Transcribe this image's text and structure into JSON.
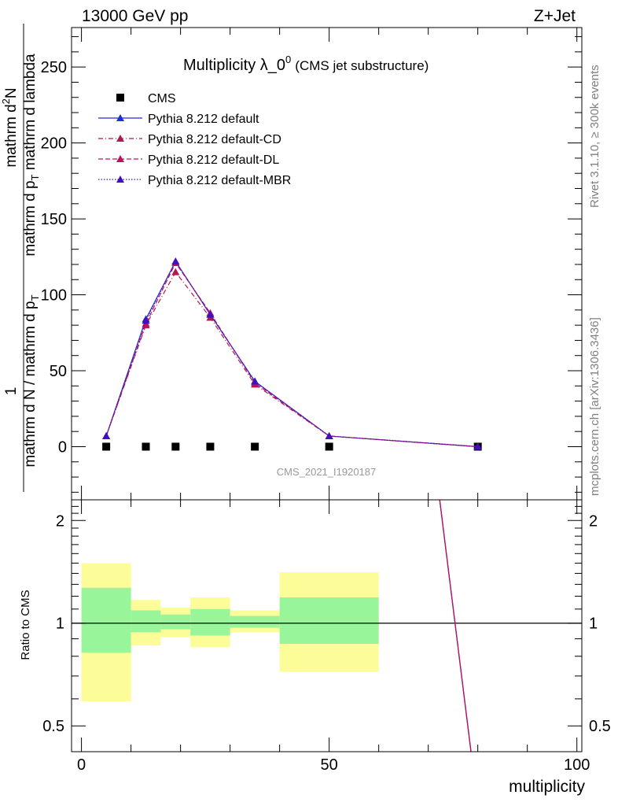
{
  "header": {
    "left": "13000 GeV pp",
    "right": "Z+Jet"
  },
  "side_text": {
    "rivet": "Rivet 3.1.10, ≥ 300k events",
    "mcplots": "mcplots.cern.ch [arXiv:1306.3436]"
  },
  "chart_data": [
    {
      "type": "line",
      "title": {
        "main": "Multiplicity λ_0",
        "sup": "0",
        "suffix": "(CMS jet substructure)"
      },
      "ylabel": {
        "numerator_1": "mathrm d",
        "numerator_sup": "2",
        "numerator_2": "N",
        "denominator_1": "mathrm d p",
        "denominator_sub": "T",
        "denominator_2": " mathrm d lambda",
        "prefactor_num": "1",
        "prefactor_den": "mathrm d N / mathrm d p",
        "prefactor_den_sub": "T"
      },
      "watermark": "CMS_2021_I1920187",
      "xlim": [
        -2,
        101
      ],
      "ylim": [
        -35,
        276
      ],
      "yticks": [
        0,
        50,
        100,
        150,
        200,
        250
      ],
      "legend_position": "top-left",
      "series": [
        {
          "name": "CMS",
          "color": "#000000",
          "marker": "square",
          "x": [
            5,
            13,
            19,
            26,
            35,
            50,
            80
          ],
          "y": [
            0,
            0,
            0,
            0,
            0,
            0,
            0
          ]
        },
        {
          "name": "Pythia 8.212 default",
          "color": "#1f2fd0",
          "marker": "triangle",
          "dash": "solid",
          "x": [
            5,
            13,
            19,
            26,
            35,
            50,
            80
          ],
          "y": [
            7,
            84,
            122,
            87,
            43,
            7,
            0
          ]
        },
        {
          "name": "Pythia 8.212 default-CD",
          "color": "#b01850",
          "marker": "triangle",
          "dash": "dash-dot",
          "x": [
            5,
            13,
            19,
            26,
            35,
            50,
            80
          ],
          "y": [
            7,
            80,
            115,
            85,
            41,
            7,
            0
          ]
        },
        {
          "name": "Pythia 8.212 default-DL",
          "color": "#c01060",
          "marker": "triangle",
          "dash": "dash",
          "x": [
            5,
            13,
            19,
            26,
            35,
            50,
            80
          ],
          "y": [
            7,
            81,
            121,
            88,
            42,
            7,
            0
          ]
        },
        {
          "name": "Pythia 8.212 default-MBR",
          "color": "#4010c0",
          "marker": "triangle",
          "dash": "dot",
          "x": [
            5,
            13,
            19,
            26,
            35,
            50,
            80
          ],
          "y": [
            7,
            83,
            122,
            87,
            43,
            7,
            0
          ]
        }
      ]
    },
    {
      "type": "line",
      "ylabel": "Ratio to CMS",
      "xlabel": "multiplicity",
      "xlim": [
        -2,
        101
      ],
      "ylim": [
        0.42,
        2.3
      ],
      "log_y": true,
      "xticks": [
        0,
        50,
        100
      ],
      "yticks": [
        0.5,
        1,
        2
      ],
      "reference_line": 1,
      "bands": [
        {
          "xlo": 0,
          "xhi": 10,
          "inner": [
            0.82,
            1.27
          ],
          "outer": [
            0.59,
            1.5
          ]
        },
        {
          "xlo": 10,
          "xhi": 16,
          "inner": [
            0.94,
            1.09
          ],
          "outer": [
            0.86,
            1.17
          ]
        },
        {
          "xlo": 16,
          "xhi": 22,
          "inner": [
            0.96,
            1.06
          ],
          "outer": [
            0.91,
            1.11
          ]
        },
        {
          "xlo": 22,
          "xhi": 30,
          "inner": [
            0.92,
            1.1
          ],
          "outer": [
            0.85,
            1.19
          ]
        },
        {
          "xlo": 30,
          "xhi": 40,
          "inner": [
            0.97,
            1.05
          ],
          "outer": [
            0.94,
            1.09
          ]
        },
        {
          "xlo": 40,
          "xhi": 60,
          "inner": [
            0.87,
            1.19
          ],
          "outer": [
            0.72,
            1.41
          ]
        }
      ],
      "band_colors": {
        "inner": "#99f599",
        "outer": "#fcfc99"
      },
      "series": [
        {
          "name": "Pythia 8.212 default",
          "color": "#1f2fd0",
          "x": [
            72,
            79
          ],
          "y": [
            2.5,
            0.38
          ]
        },
        {
          "name": "Pythia 8.212 default-DL",
          "color": "#c01060",
          "x": [
            72,
            79
          ],
          "y": [
            2.5,
            0.38
          ]
        }
      ]
    }
  ]
}
